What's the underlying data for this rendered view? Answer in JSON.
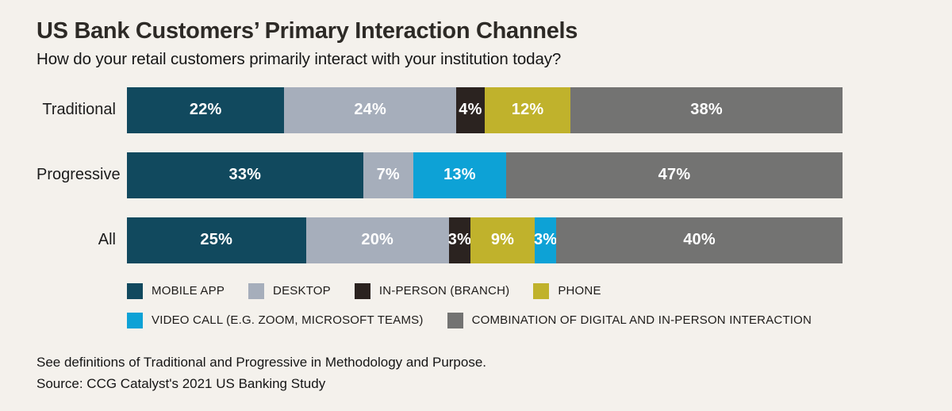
{
  "header": {
    "title": "US Bank Customers’ Primary Interaction Channels",
    "subtitle": "How do your retail customers primarily interact with your institution today?"
  },
  "footer": {
    "note": "See definitions of Traditional and Progressive in Methodology and Purpose.",
    "source": "Source: CCG Catalyst's 2021 US Banking Study"
  },
  "colors": {
    "background": "#f4f1ec",
    "title_text": "#2d2a26",
    "value_label_text": "#ffffff"
  },
  "chart_data": {
    "type": "bar",
    "variant": "horizontal-stacked",
    "title": "US Bank Customers’ Primary Interaction Channels",
    "subtitle": "How do your retail customers primarily interact with your institution today?",
    "categories": [
      "Traditional",
      "Progressive",
      "All"
    ],
    "series": [
      {
        "name": "MOBILE APP",
        "color": "#11495e",
        "values": [
          22,
          33,
          25
        ]
      },
      {
        "name": "DESKTOP",
        "color": "#a6aebb",
        "values": [
          24,
          7,
          20
        ]
      },
      {
        "name": "IN-PERSON (BRANCH)",
        "color": "#2b2320",
        "values": [
          4,
          0,
          3
        ]
      },
      {
        "name": "PHONE",
        "color": "#c0b22c",
        "values": [
          12,
          0,
          9
        ]
      },
      {
        "name": "VIDEO CALL (E.G. ZOOM, MICROSOFT TEAMS)",
        "color": "#0da2d6",
        "values": [
          0,
          13,
          3
        ]
      },
      {
        "name": "COMBINATION OF DIGITAL AND IN-PERSON INTERACTION",
        "color": "#737372",
        "values": [
          38,
          47,
          40
        ]
      }
    ],
    "value_suffix": "%",
    "xlim": [
      0,
      100
    ],
    "grid": false,
    "legend_position": "bottom",
    "value_labels": "inside-center"
  }
}
